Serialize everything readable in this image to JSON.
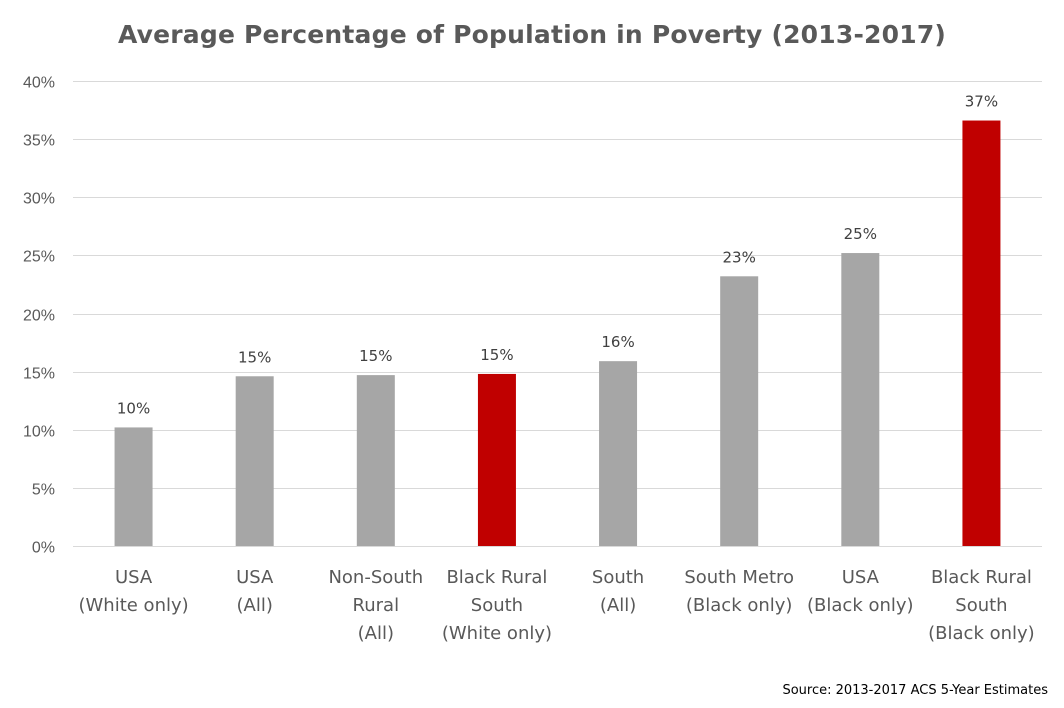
{
  "chart_data": {
    "type": "bar",
    "title": "Average Percentage of Population in Poverty (2013-2017)",
    "categories": [
      [
        "USA",
        "(White only)"
      ],
      [
        "USA",
        "(All)"
      ],
      [
        "Non-South",
        "Rural",
        "(All)"
      ],
      [
        "Black Rural",
        "South",
        "(White only)"
      ],
      [
        "South",
        "(All)"
      ],
      [
        "South Metro",
        "(Black only)"
      ],
      [
        "USA",
        "(Black only)"
      ],
      [
        "Black Rural",
        "South",
        "(Black only)"
      ]
    ],
    "values": [
      10.2,
      14.6,
      14.7,
      14.8,
      15.9,
      23.2,
      25.2,
      36.6
    ],
    "data_labels": [
      "10%",
      "15%",
      "15%",
      "15%",
      "16%",
      "23%",
      "25%",
      "37%"
    ],
    "bar_colors": [
      "#a6a6a6",
      "#a6a6a6",
      "#a6a6a6",
      "#c00000",
      "#a6a6a6",
      "#a6a6a6",
      "#a6a6a6",
      "#c00000"
    ],
    "ylim": [
      0,
      40
    ],
    "yticks": [
      0,
      5,
      10,
      15,
      20,
      25,
      30,
      35,
      40
    ],
    "ytick_labels": [
      "0%",
      "5%",
      "10%",
      "15%",
      "20%",
      "25%",
      "30%",
      "35%",
      "40%"
    ],
    "grid": true,
    "grid_color": "#d9d9d9",
    "xlabel": "",
    "ylabel": ""
  },
  "source": "Source: 2013-2017 ACS 5-Year Estimates"
}
